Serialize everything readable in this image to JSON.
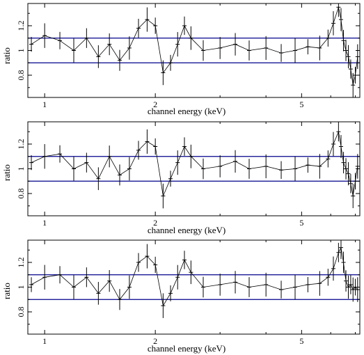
{
  "chart_data": [
    {
      "type": "scatter",
      "xlabel": "channel energy (keV)",
      "ylabel": "ratio",
      "xscale": "log",
      "xlim": [
        0.9,
        7.2
      ],
      "ylim": [
        0.62,
        1.38
      ],
      "xticks": [
        1,
        2,
        5
      ],
      "ytick_labels": [
        "0.8",
        "1",
        "1.2"
      ],
      "yticks": [
        0.8,
        1.0,
        1.2
      ],
      "reference_lines": [
        0.9,
        1.1
      ],
      "reference_line_color": "#00008b",
      "data_color": "#000000",
      "grid": false,
      "series": [
        {
          "x": [
            0.92,
            1.0,
            1.1,
            1.2,
            1.3,
            1.4,
            1.5,
            1.6,
            1.7,
            1.8,
            1.9,
            2.0,
            2.1,
            2.2,
            2.3,
            2.4,
            2.5,
            2.7,
            3.0,
            3.3,
            3.6,
            4.0,
            4.4,
            4.8,
            5.2,
            5.6,
            5.9,
            6.1,
            6.3,
            6.4,
            6.5,
            6.6,
            6.7,
            6.8,
            6.9,
            7.0,
            7.1
          ],
          "y": [
            1.05,
            1.12,
            1.08,
            1.0,
            1.1,
            0.95,
            1.05,
            0.92,
            1.02,
            1.18,
            1.25,
            1.2,
            0.82,
            0.9,
            1.05,
            1.2,
            1.1,
            1.0,
            1.02,
            1.05,
            1.0,
            1.02,
            0.98,
            1.0,
            1.03,
            1.02,
            1.1,
            1.22,
            1.35,
            1.25,
            1.08,
            1.0,
            0.95,
            0.85,
            0.72,
            0.8,
            0.95
          ]
        }
      ]
    },
    {
      "type": "scatter",
      "xlabel": "channel energy (keV)",
      "ylabel": "ratio",
      "xscale": "log",
      "xlim": [
        0.9,
        7.2
      ],
      "ylim": [
        0.62,
        1.38
      ],
      "xticks": [
        1,
        2,
        5
      ],
      "ytick_labels": [
        "0.8",
        "1",
        "1.2"
      ],
      "yticks": [
        0.8,
        1.0,
        1.2
      ],
      "reference_lines": [
        0.9,
        1.1
      ],
      "reference_line_color": "#00008b",
      "data_color": "#000000",
      "grid": false,
      "series": [
        {
          "x": [
            0.92,
            1.0,
            1.1,
            1.2,
            1.3,
            1.4,
            1.5,
            1.6,
            1.7,
            1.8,
            1.9,
            2.0,
            2.1,
            2.2,
            2.3,
            2.4,
            2.5,
            2.7,
            3.0,
            3.3,
            3.6,
            4.0,
            4.4,
            4.8,
            5.2,
            5.6,
            5.9,
            6.1,
            6.3,
            6.4,
            6.5,
            6.6,
            6.7,
            6.8,
            6.9,
            7.0,
            7.1
          ],
          "y": [
            1.05,
            1.1,
            1.12,
            1.0,
            1.05,
            0.92,
            1.1,
            0.95,
            1.0,
            1.15,
            1.22,
            1.18,
            0.78,
            0.92,
            1.05,
            1.18,
            1.1,
            1.0,
            1.02,
            1.06,
            1.0,
            1.02,
            0.99,
            1.0,
            1.03,
            1.02,
            1.08,
            1.2,
            1.3,
            1.18,
            1.05,
            1.0,
            0.96,
            0.88,
            0.78,
            0.9,
            1.02
          ]
        }
      ]
    },
    {
      "type": "scatter",
      "xlabel": "channel energy (keV)",
      "ylabel": "ratio",
      "xscale": "log",
      "xlim": [
        0.9,
        7.2
      ],
      "ylim": [
        0.62,
        1.38
      ],
      "xticks": [
        1,
        2,
        5
      ],
      "ytick_labels": [
        "0.8",
        "1",
        "1.2"
      ],
      "yticks": [
        0.8,
        1.0,
        1.2
      ],
      "reference_lines": [
        0.9,
        1.1
      ],
      "reference_line_color": "#00008b",
      "data_color": "#000000",
      "grid": false,
      "series": [
        {
          "x": [
            0.92,
            1.0,
            1.1,
            1.2,
            1.3,
            1.4,
            1.5,
            1.6,
            1.7,
            1.8,
            1.9,
            2.0,
            2.1,
            2.2,
            2.3,
            2.4,
            2.5,
            2.7,
            3.0,
            3.3,
            3.6,
            4.0,
            4.4,
            4.8,
            5.2,
            5.6,
            5.9,
            6.1,
            6.3,
            6.4,
            6.5,
            6.6,
            6.7,
            6.8,
            6.9,
            7.0,
            7.1
          ],
          "y": [
            1.02,
            1.08,
            1.1,
            1.0,
            1.08,
            0.95,
            1.05,
            0.9,
            1.0,
            1.2,
            1.25,
            1.18,
            0.85,
            0.95,
            1.08,
            1.22,
            1.12,
            1.0,
            1.02,
            1.04,
            1.0,
            1.02,
            0.98,
            1.0,
            1.02,
            1.03,
            1.08,
            1.15,
            1.28,
            1.32,
            1.2,
            1.05,
            1.0,
            1.02,
            0.98,
            1.0,
            0.98
          ]
        }
      ]
    }
  ]
}
